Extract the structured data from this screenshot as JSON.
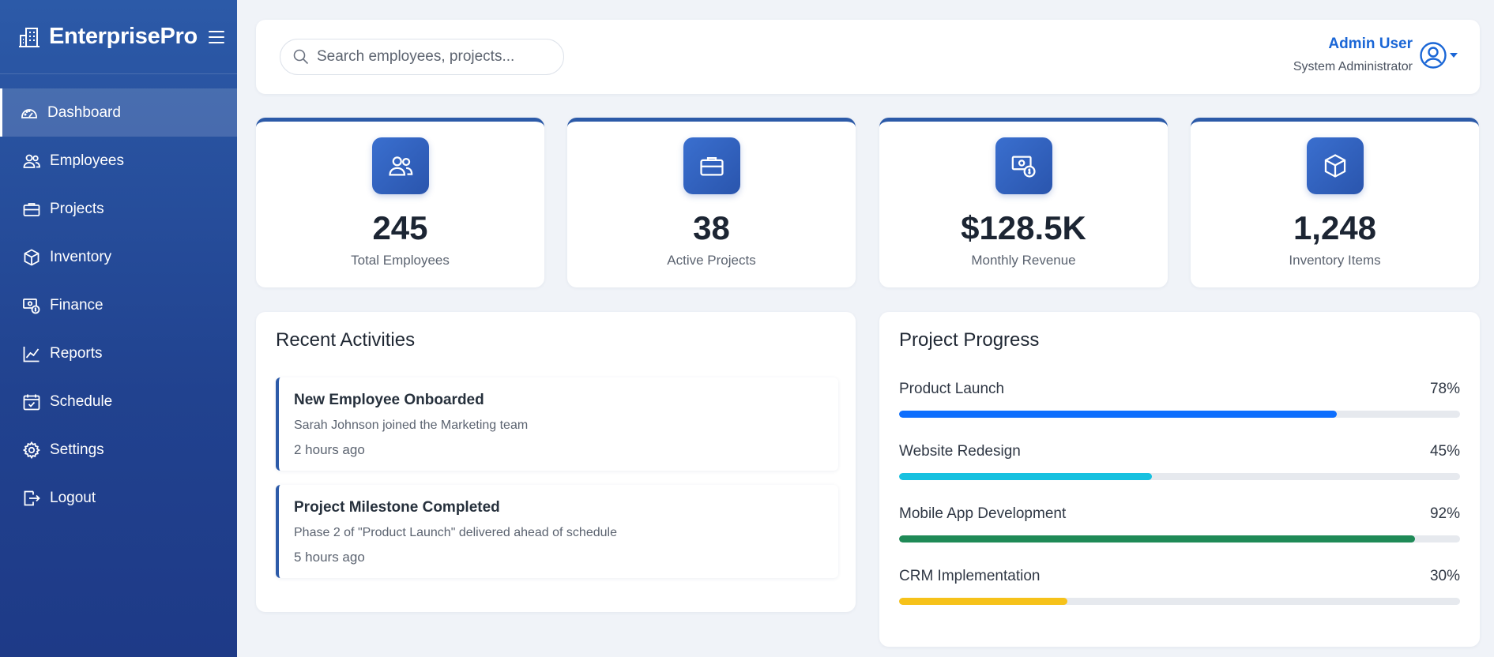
{
  "app": {
    "name": "EnterprisePro"
  },
  "sidebar": {
    "items": [
      {
        "label": "Dashboard",
        "icon": "gauge-icon",
        "active": true
      },
      {
        "label": "Employees",
        "icon": "people-icon"
      },
      {
        "label": "Projects",
        "icon": "briefcase-icon"
      },
      {
        "label": "Inventory",
        "icon": "box-icon"
      },
      {
        "label": "Finance",
        "icon": "cash-icon"
      },
      {
        "label": "Reports",
        "icon": "line-chart-icon"
      },
      {
        "label": "Schedule",
        "icon": "calendar-check-icon"
      },
      {
        "label": "Settings",
        "icon": "gear-icon"
      },
      {
        "label": "Logout",
        "icon": "logout-icon"
      }
    ]
  },
  "search": {
    "placeholder": "Search employees, projects..."
  },
  "user": {
    "name": "Admin User",
    "role": "System Administrator"
  },
  "stats": [
    {
      "value": "245",
      "label": "Total Employees",
      "icon": "people-icon"
    },
    {
      "value": "38",
      "label": "Active Projects",
      "icon": "briefcase-icon"
    },
    {
      "value": "$128.5K",
      "label": "Monthly Revenue",
      "icon": "cash-icon"
    },
    {
      "value": "1,248",
      "label": "Inventory Items",
      "icon": "box-icon"
    }
  ],
  "activities": {
    "title": "Recent Activities",
    "items": [
      {
        "title": "New Employee Onboarded",
        "desc": "Sarah Johnson joined the Marketing team",
        "time": "2 hours ago"
      },
      {
        "title": "Project Milestone Completed",
        "desc": "Phase 2 of \"Product Launch\" delivered ahead of schedule",
        "time": "5 hours ago"
      }
    ]
  },
  "progress": {
    "title": "Project Progress",
    "items": [
      {
        "name": "Product Launch",
        "percent_label": "78%",
        "value": 78,
        "color": "#0d6efd"
      },
      {
        "name": "Website Redesign",
        "percent_label": "45%",
        "value": 45,
        "color": "#17c1e0"
      },
      {
        "name": "Mobile App Development",
        "percent_label": "92%",
        "value": 92,
        "color": "#1f8a57"
      },
      {
        "name": "CRM Implementation",
        "percent_label": "30%",
        "value": 30,
        "color": "#f6c21a"
      }
    ]
  },
  "colors": {
    "accent": "#2c5aa8",
    "link": "#1a66d6"
  }
}
